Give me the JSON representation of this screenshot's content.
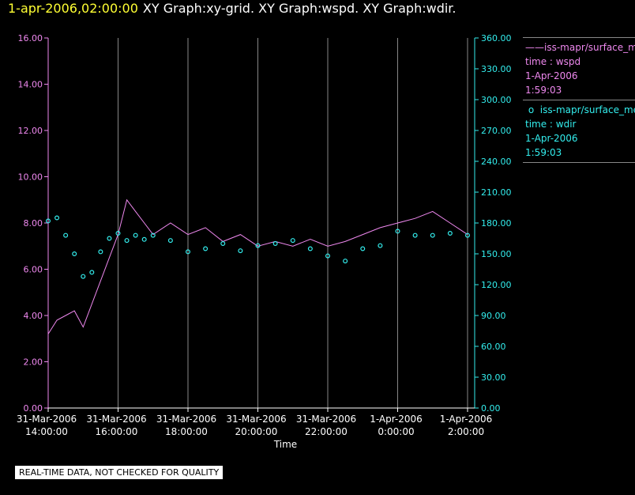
{
  "header": {
    "date": "1-apr-2006,02:00:00",
    "titles": "XY Graph:xy-grid.  XY Graph:wspd.  XY Graph:wdir."
  },
  "legend": {
    "wspd": {
      "line1": "iss-mapr/surface_met",
      "line2": "time : wspd",
      "line3": "1-Apr-2006",
      "line4": "1:59:03"
    },
    "wdir": {
      "line1": "iss-mapr/surface_met",
      "line2": "time : wdir",
      "line3": "1-Apr-2006",
      "line4": "1:59:03"
    }
  },
  "notice": "REAL-TIME DATA, NOT CHECKED FOR QUALITY",
  "colors": {
    "wspd": "#ee88ee",
    "wdir": "#33eeee",
    "grid": "#888888",
    "text": "#ffffff"
  },
  "chart_data": {
    "type": "line",
    "xlabel": "Time",
    "x_range": [
      "2006-03-31 14:00",
      "2006-04-01 02:00"
    ],
    "x_ticks": [
      [
        "31-Mar-2006",
        "14:00:00"
      ],
      [
        "31-Mar-2006",
        "16:00:00"
      ],
      [
        "31-Mar-2006",
        "18:00:00"
      ],
      [
        "31-Mar-2006",
        "20:00:00"
      ],
      [
        "31-Mar-2006",
        "22:00:00"
      ],
      [
        "1-Apr-2006",
        "0:00:00"
      ],
      [
        "1-Apr-2006",
        "2:00:00"
      ]
    ],
    "y_left": {
      "range": [
        0,
        16
      ],
      "ticks": [
        "0.00",
        "2.00",
        "4.00",
        "6.00",
        "8.00",
        "10.00",
        "12.00",
        "14.00",
        "16.00"
      ]
    },
    "y_right": {
      "range": [
        0,
        360
      ],
      "ticks": [
        "0.00",
        "30.00",
        "60.00",
        "90.00",
        "120.00",
        "150.00",
        "180.00",
        "210.00",
        "240.00",
        "270.00",
        "300.00",
        "330.00",
        "360.00"
      ]
    },
    "grid": "vertical",
    "series": [
      {
        "axis": "left",
        "style": "line",
        "x": [
          "2006-03-31 14:00",
          "2006-03-31 14:15",
          "2006-03-31 14:30",
          "2006-03-31 14:45",
          "2006-03-31 15:00",
          "2006-03-31 15:15",
          "2006-03-31 15:30",
          "2006-03-31 15:45",
          "2006-03-31 16:00",
          "2006-03-31 16:15",
          "2006-03-31 16:30",
          "2006-03-31 16:45",
          "2006-03-31 17:00",
          "2006-03-31 17:30",
          "2006-03-31 18:00",
          "2006-03-31 18:30",
          "2006-03-31 19:00",
          "2006-03-31 19:30",
          "2006-03-31 20:00",
          "2006-03-31 20:30",
          "2006-03-31 21:00",
          "2006-03-31 21:30",
          "2006-03-31 22:00",
          "2006-03-31 22:30",
          "2006-03-31 23:00",
          "2006-03-31 23:30",
          "2006-04-01 00:00",
          "2006-04-01 00:30",
          "2006-04-01 01:00",
          "2006-04-01 01:30",
          "2006-04-01 02:00"
        ],
        "values": [
          3.2,
          3.8,
          4.0,
          4.2,
          3.5,
          4.5,
          5.5,
          6.5,
          7.5,
          9.0,
          8.5,
          8.0,
          7.5,
          8.0,
          7.5,
          7.8,
          7.2,
          7.5,
          7.0,
          7.2,
          7.0,
          7.3,
          7.0,
          7.2,
          7.5,
          7.8,
          8.0,
          8.2,
          8.5,
          8.0,
          7.5
        ]
      },
      {
        "axis": "right",
        "style": "points",
        "x": [
          "2006-03-31 14:00",
          "2006-03-31 14:15",
          "2006-03-31 14:30",
          "2006-03-31 14:45",
          "2006-03-31 15:00",
          "2006-03-31 15:15",
          "2006-03-31 15:30",
          "2006-03-31 15:45",
          "2006-03-31 16:00",
          "2006-03-31 16:15",
          "2006-03-31 16:30",
          "2006-03-31 16:45",
          "2006-03-31 17:00",
          "2006-03-31 17:30",
          "2006-03-31 18:00",
          "2006-03-31 18:30",
          "2006-03-31 19:00",
          "2006-03-31 19:30",
          "2006-03-31 20:00",
          "2006-03-31 20:30",
          "2006-03-31 21:00",
          "2006-03-31 21:30",
          "2006-03-31 22:00",
          "2006-03-31 22:30",
          "2006-03-31 23:00",
          "2006-03-31 23:30",
          "2006-04-01 00:00",
          "2006-04-01 00:30",
          "2006-04-01 01:00",
          "2006-04-01 01:30",
          "2006-04-01 02:00"
        ],
        "values": [
          182,
          185,
          168,
          150,
          128,
          132,
          152,
          165,
          170,
          163,
          168,
          164,
          168,
          163,
          152,
          155,
          160,
          153,
          158,
          160,
          163,
          155,
          148,
          143,
          155,
          158,
          172,
          168,
          168,
          170,
          168
        ]
      }
    ]
  }
}
